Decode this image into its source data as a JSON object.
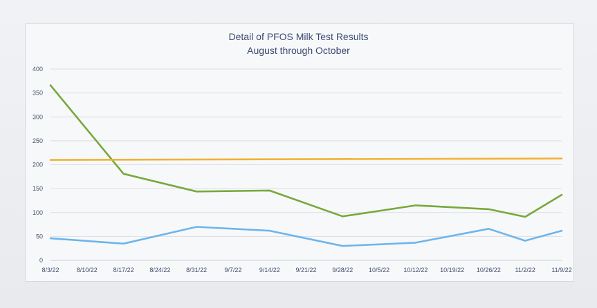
{
  "chart_data": {
    "type": "line",
    "title": "Detail of PFOS Milk Test Results",
    "subtitle": "August through October",
    "xlabel": "",
    "ylabel": "",
    "ylim": [
      0,
      400
    ],
    "yticks": [
      0,
      50,
      100,
      150,
      200,
      250,
      300,
      350,
      400
    ],
    "ytick_labels": [
      "0",
      "50",
      "100",
      "150",
      "200",
      "250",
      "300",
      "350",
      "400"
    ],
    "categories": [
      "8/3/22",
      "8/10/22",
      "8/17/22",
      "8/24/22",
      "8/31/22",
      "9/7/22",
      "9/14/22",
      "9/21/22",
      "9/28/22",
      "10/5/22",
      "10/12/22",
      "10/19/22",
      "10/26/22",
      "11/2/22",
      "11/9/22"
    ],
    "grid": true,
    "legend": "none",
    "series": [
      {
        "color": "#78a83a",
        "points": [
          {
            "x": "8/3/22",
            "y": 366
          },
          {
            "x": "8/17/22",
            "y": 181
          },
          {
            "x": "8/31/22",
            "y": 144
          },
          {
            "x": "9/14/22",
            "y": 146
          },
          {
            "x": "9/28/22",
            "y": 92
          },
          {
            "x": "10/12/22",
            "y": 115
          },
          {
            "x": "10/26/22",
            "y": 107
          },
          {
            "x": "11/2/22",
            "y": 91
          },
          {
            "x": "11/9/22",
            "y": 137
          }
        ]
      },
      {
        "color": "#f2b233",
        "points": [
          {
            "x": "8/3/22",
            "y": 210
          },
          {
            "x": "11/9/22",
            "y": 213
          }
        ]
      },
      {
        "color": "#6cb5ec",
        "points": [
          {
            "x": "8/3/22",
            "y": 46
          },
          {
            "x": "8/17/22",
            "y": 35
          },
          {
            "x": "8/31/22",
            "y": 70
          },
          {
            "x": "9/14/22",
            "y": 62
          },
          {
            "x": "9/28/22",
            "y": 30
          },
          {
            "x": "10/12/22",
            "y": 37
          },
          {
            "x": "10/26/22",
            "y": 66
          },
          {
            "x": "11/2/22",
            "y": 41
          },
          {
            "x": "11/9/22",
            "y": 62
          }
        ]
      }
    ]
  }
}
